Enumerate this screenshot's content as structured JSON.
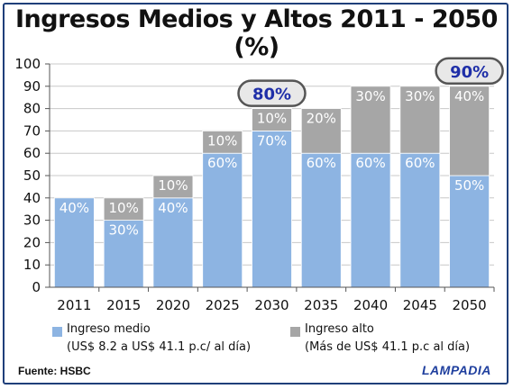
{
  "chart_data": {
    "type": "bar",
    "stacked": true,
    "title": "Ingresos Medios y Altos 2011 - 2050 (%)",
    "categories": [
      "2011",
      "2015",
      "2020",
      "2025",
      "2030",
      "2035",
      "2040",
      "2045",
      "2050"
    ],
    "series": [
      {
        "name": "Ingreso medio",
        "subtitle": "(US$ 8.2 a US$ 41.1 p.c/ al día)",
        "color": "#8db4e2",
        "values": [
          40,
          30,
          40,
          60,
          70,
          60,
          60,
          60,
          50
        ],
        "labels": [
          "40%",
          "30%",
          "40%",
          "60%",
          "70%",
          "60%",
          "60%",
          "60%",
          "50%"
        ]
      },
      {
        "name": "Ingreso alto",
        "subtitle": "(Más de US$ 41.1  p.c al día)",
        "color": "#a6a6a6",
        "values": [
          0,
          10,
          10,
          10,
          10,
          20,
          30,
          30,
          40
        ],
        "labels": [
          "",
          "10%",
          "10%",
          "10%",
          "10%",
          "20%",
          "30%",
          "30%",
          "40%"
        ]
      }
    ],
    "ylim": [
      0,
      100
    ],
    "yticks": [
      0,
      10,
      20,
      30,
      40,
      50,
      60,
      70,
      80,
      90,
      100
    ],
    "grid": true,
    "annotations": [
      {
        "category": "2030",
        "text": "80%"
      },
      {
        "category": "2050",
        "text": "90%"
      }
    ],
    "legend": "bottom"
  },
  "footer": {
    "source": "Fuente: HSBC",
    "brand": "LAMPADIA"
  },
  "colors": {
    "medio": "#8db4e2",
    "alto": "#a6a6a6",
    "annotation_text": "#1f2fa8",
    "annotation_fill": "#e8e8e8",
    "frame": "#1f3f7a"
  }
}
